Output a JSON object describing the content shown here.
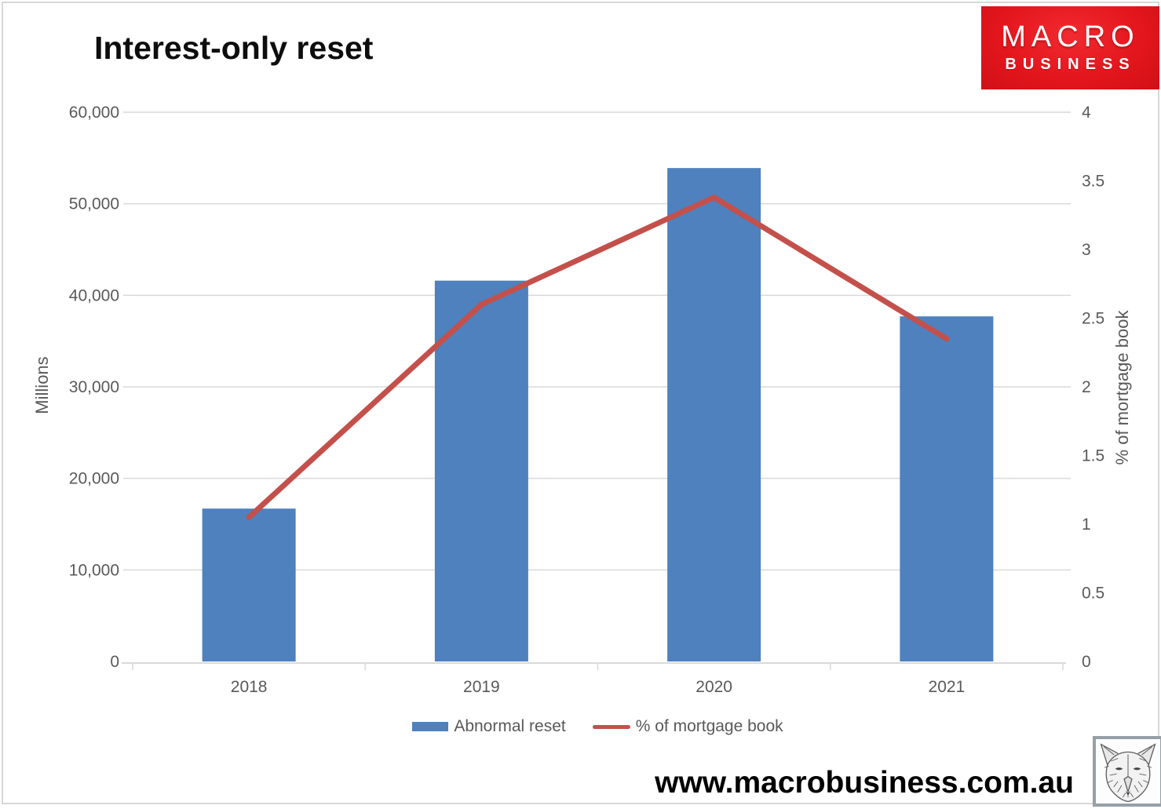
{
  "page": {
    "site_url": "www.macrobusiness.com.au"
  },
  "logo": {
    "line1": "MACRO",
    "line2": "BUSINESS",
    "bg_color": "#e4161d",
    "text_color": "#ffffff"
  },
  "colors": {
    "bar": "#4e81bd",
    "line": "#c4504b",
    "gridline": "#d9d9d9",
    "axis_text": "#595959",
    "title_text": "#0d0d0d"
  },
  "chart_data": {
    "type": "bar",
    "subtype": "combo-bar-line",
    "title": "Interest-only reset",
    "categories": [
      "2018",
      "2019",
      "2020",
      "2021"
    ],
    "series": [
      {
        "name": "Abnormal reset",
        "type": "bar",
        "axis": "left",
        "color": "#4e81bd",
        "values": [
          16700,
          41600,
          53900,
          37700
        ]
      },
      {
        "name": "% of mortgage book",
        "type": "line",
        "axis": "right",
        "color": "#c4504b",
        "values": [
          1.05,
          2.6,
          3.38,
          2.35
        ]
      }
    ],
    "left_axis": {
      "label": "Millions",
      "min": 0,
      "max": 60000,
      "step": 10000,
      "ticks": [
        "0",
        "10,000",
        "20,000",
        "30,000",
        "40,000",
        "50,000",
        "60,000"
      ]
    },
    "right_axis": {
      "label": "% of mortgage book",
      "min": 0,
      "max": 4,
      "step": 0.5,
      "ticks": [
        "0",
        "0.5",
        "1",
        "1.5",
        "2",
        "2.5",
        "3",
        "3.5",
        "4"
      ]
    },
    "grid": true,
    "legend_position": "bottom"
  }
}
